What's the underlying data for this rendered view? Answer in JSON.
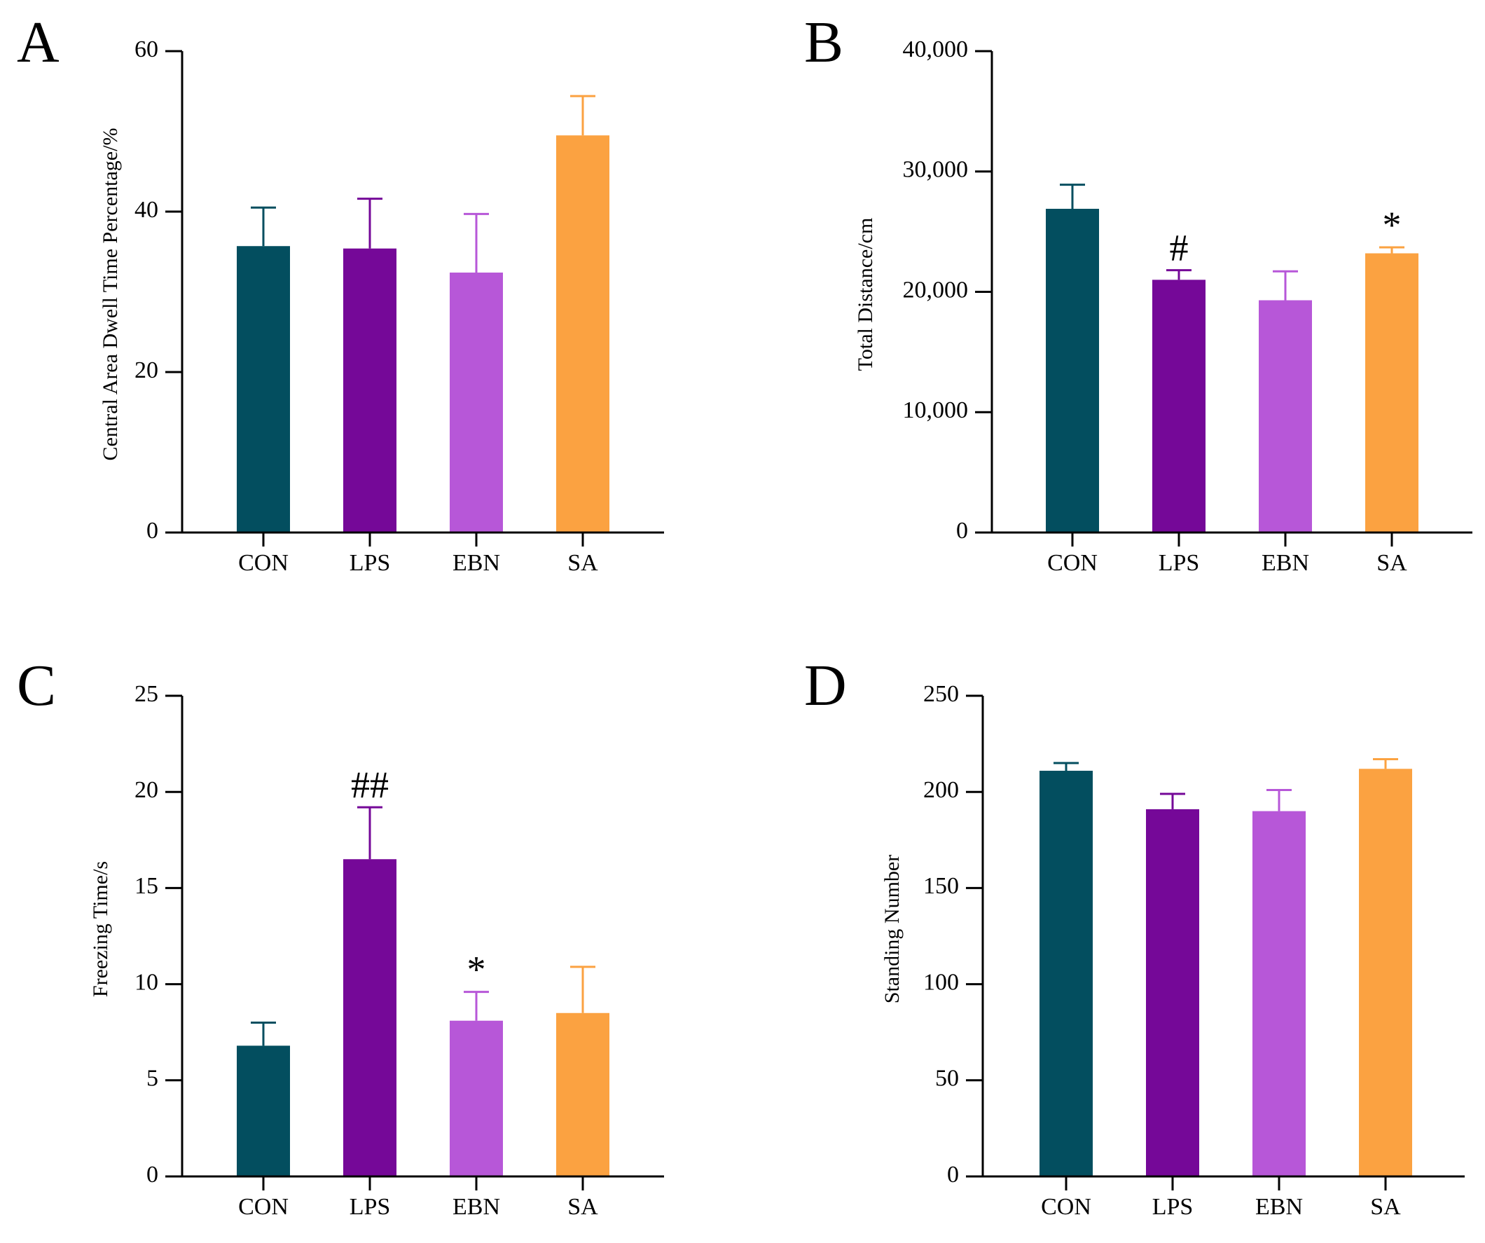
{
  "colors": {
    "CON": "#034e5f",
    "LPS": "#750898",
    "EBN": "#b757d8",
    "SA": "#fba241"
  },
  "chart_data": [
    {
      "panel": "A",
      "type": "bar",
      "title": "",
      "xlabel": "",
      "ylabel": "Central Area Dwell Time Percentage/%",
      "categories": [
        "CON",
        "LPS",
        "EBN",
        "SA"
      ],
      "values": [
        35.7,
        35.4,
        32.4,
        49.5
      ],
      "errors": [
        4.8,
        6.2,
        7.3,
        4.9
      ],
      "annotations": [
        "",
        "",
        "",
        ""
      ],
      "ylim": [
        0,
        60
      ],
      "yticks": [
        0,
        20,
        40,
        60
      ],
      "ytick_labels": [
        "0",
        "20",
        "40",
        "60"
      ]
    },
    {
      "panel": "B",
      "type": "bar",
      "title": "",
      "xlabel": "",
      "ylabel": "Total Distance/cm",
      "categories": [
        "CON",
        "LPS",
        "EBN",
        "SA"
      ],
      "values": [
        26900,
        21000,
        19300,
        23200
      ],
      "errors": [
        2000,
        800,
        2400,
        500
      ],
      "annotations": [
        "",
        "#",
        "",
        "*"
      ],
      "ylim": [
        0,
        40000
      ],
      "yticks": [
        0,
        10000,
        20000,
        30000,
        40000
      ],
      "ytick_labels": [
        "0",
        "10,000",
        "20,000",
        "30,000",
        "40,000"
      ]
    },
    {
      "panel": "C",
      "type": "bar",
      "title": "",
      "xlabel": "",
      "ylabel": "Freezing Time/s",
      "categories": [
        "CON",
        "LPS",
        "EBN",
        "SA"
      ],
      "values": [
        6.8,
        16.5,
        8.1,
        8.5
      ],
      "errors": [
        1.2,
        2.7,
        1.5,
        2.4
      ],
      "annotations": [
        "",
        "##",
        "*",
        ""
      ],
      "ylim": [
        0,
        25
      ],
      "yticks": [
        0,
        5,
        10,
        15,
        20,
        25
      ],
      "ytick_labels": [
        "0",
        "5",
        "10",
        "15",
        "20",
        "25"
      ]
    },
    {
      "panel": "D",
      "type": "bar",
      "title": "",
      "xlabel": "",
      "ylabel": "Standing Number",
      "categories": [
        "CON",
        "LPS",
        "EBN",
        "SA"
      ],
      "values": [
        211,
        191,
        190,
        212
      ],
      "errors": [
        4,
        8,
        11,
        5
      ],
      "annotations": [
        "",
        "",
        "",
        ""
      ],
      "ylim": [
        0,
        250
      ],
      "yticks": [
        0,
        50,
        100,
        150,
        200,
        250
      ],
      "ytick_labels": [
        "0",
        "50",
        "100",
        "150",
        "200",
        "250"
      ]
    }
  ]
}
